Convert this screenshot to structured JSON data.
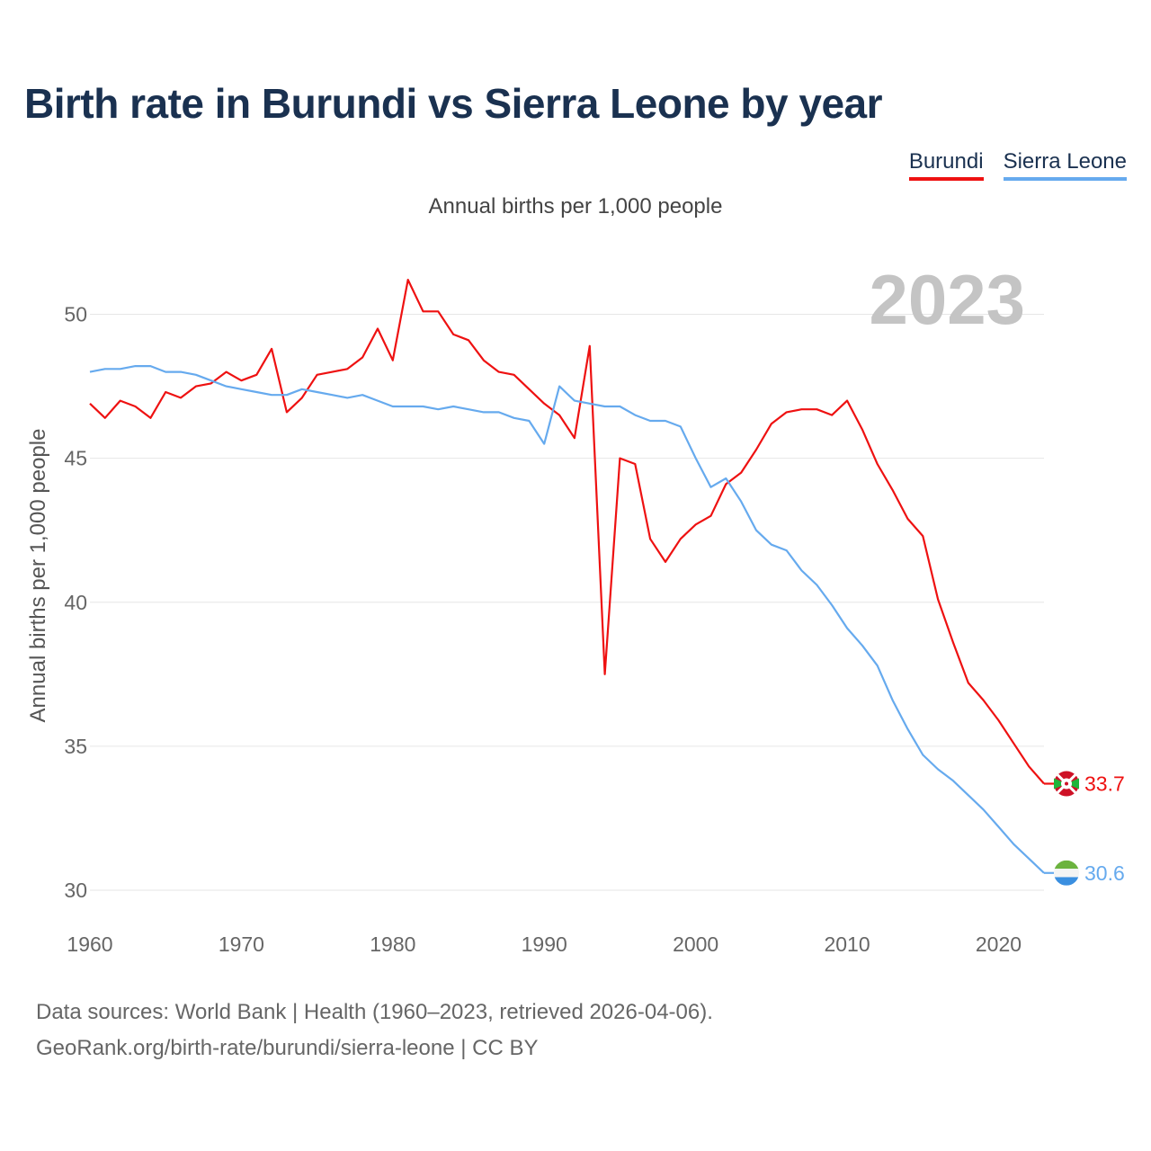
{
  "title": "Birth rate in Burundi vs Sierra Leone by year",
  "subtitle": "Annual births per 1,000 people",
  "year_label": "2023",
  "footer": {
    "line1": "Data sources: World Bank | Health (1960–2023, retrieved 2026-04-06).",
    "line2": "GeoRank.org/birth-rate/burundi/sierra-leone | CC BY"
  },
  "colors": {
    "burundi": "#ee1111",
    "sierra_leone": "#66aaee",
    "title": "#1a3150"
  },
  "chart_data": {
    "type": "line",
    "ylabel": "Annual births per 1,000 people",
    "xlabel": "",
    "xlim": [
      1960,
      2023
    ],
    "ylim": [
      30,
      52
    ],
    "yticks": [
      30,
      35,
      40,
      45,
      50
    ],
    "xticks": [
      1960,
      1970,
      1980,
      1990,
      2000,
      2010,
      2020
    ],
    "grid": true,
    "legend": "top-right",
    "x": [
      1960,
      1961,
      1962,
      1963,
      1964,
      1965,
      1966,
      1967,
      1968,
      1969,
      1970,
      1971,
      1972,
      1973,
      1974,
      1975,
      1976,
      1977,
      1978,
      1979,
      1980,
      1981,
      1982,
      1983,
      1984,
      1985,
      1986,
      1987,
      1988,
      1989,
      1990,
      1991,
      1992,
      1993,
      1994,
      1995,
      1996,
      1997,
      1998,
      1999,
      2000,
      2001,
      2002,
      2003,
      2004,
      2005,
      2006,
      2007,
      2008,
      2009,
      2010,
      2011,
      2012,
      2013,
      2014,
      2015,
      2016,
      2017,
      2018,
      2019,
      2020,
      2021,
      2022,
      2023
    ],
    "series": [
      {
        "name": "Burundi",
        "color": "#ee1111",
        "end_label": "33.7",
        "values": [
          46.9,
          46.4,
          47.0,
          46.8,
          46.4,
          47.3,
          47.1,
          47.5,
          47.6,
          48.0,
          47.7,
          47.9,
          48.8,
          46.6,
          47.1,
          47.9,
          48.0,
          48.1,
          48.5,
          49.5,
          48.4,
          51.2,
          50.1,
          50.1,
          49.3,
          49.1,
          48.4,
          48.0,
          47.9,
          47.4,
          46.9,
          46.5,
          45.7,
          48.9,
          37.5,
          45.0,
          44.8,
          42.2,
          41.4,
          42.2,
          42.7,
          43.0,
          44.1,
          44.5,
          45.3,
          46.2,
          46.6,
          46.7,
          46.7,
          46.5,
          47.0,
          46.0,
          44.8,
          43.9,
          42.9,
          42.3,
          40.1,
          38.6,
          37.2,
          36.6,
          35.9,
          35.1,
          34.3,
          33.7
        ]
      },
      {
        "name": "Sierra Leone",
        "color": "#66aaee",
        "end_label": "30.6",
        "values": [
          48.0,
          48.1,
          48.1,
          48.2,
          48.2,
          48.0,
          48.0,
          47.9,
          47.7,
          47.5,
          47.4,
          47.3,
          47.2,
          47.2,
          47.4,
          47.3,
          47.2,
          47.1,
          47.2,
          47.0,
          46.8,
          46.8,
          46.8,
          46.7,
          46.8,
          46.7,
          46.6,
          46.6,
          46.4,
          46.3,
          45.5,
          47.5,
          47.0,
          46.9,
          46.8,
          46.8,
          46.5,
          46.3,
          46.3,
          46.1,
          45.0,
          44.0,
          44.3,
          43.5,
          42.5,
          42.0,
          41.8,
          41.1,
          40.6,
          39.9,
          39.1,
          38.5,
          37.8,
          36.6,
          35.6,
          34.7,
          34.2,
          33.8,
          33.3,
          32.8,
          32.2,
          31.6,
          31.1,
          30.6
        ]
      }
    ]
  }
}
